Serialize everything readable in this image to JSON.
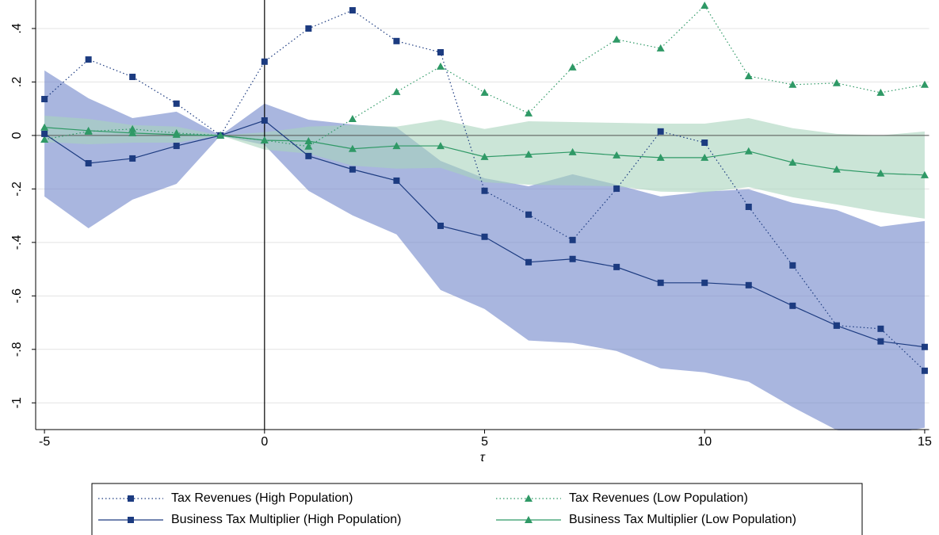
{
  "chart_data": {
    "type": "line",
    "x": [
      -5,
      -4,
      -3,
      -2,
      -1,
      0,
      1,
      2,
      3,
      4,
      5,
      6,
      7,
      8,
      9,
      10,
      11,
      12,
      13,
      14,
      15
    ],
    "xlim": [
      -5.2,
      15.1
    ],
    "xticks": [
      -5,
      0,
      5,
      10,
      15
    ],
    "ylim": [
      -1.1,
      0.49
    ],
    "yticks": [
      -1,
      {
        "value": -0.8,
        "label": "-.8"
      },
      {
        "value": -0.6,
        "label": "-.6"
      },
      {
        "value": -0.4,
        "label": "-.4"
      },
      {
        "value": -0.2,
        "label": "-.2"
      },
      0,
      {
        "value": 0.2,
        "label": ".2"
      },
      {
        "value": 0.4,
        "label": ".4"
      }
    ],
    "xlabel": "τ",
    "grid": true,
    "xline": 0,
    "bands": [
      {
        "color": "#6f86c9",
        "upper": [
          0.243,
          0.139,
          0.065,
          0.089,
          0,
          0.119,
          0.059,
          0.041,
          0.03,
          -0.095,
          -0.16,
          -0.19,
          -0.145,
          -0.184,
          -0.228,
          -0.21,
          -0.201,
          -0.252,
          -0.279,
          -0.341,
          -0.32
        ],
        "lower": [
          -0.228,
          -0.347,
          -0.24,
          -0.181,
          0,
          -0.036,
          -0.207,
          -0.299,
          -0.37,
          -0.578,
          -0.649,
          -0.767,
          -0.776,
          -0.806,
          -0.871,
          -0.886,
          -0.921,
          -1.016,
          -1.102,
          -1.123,
          -1.093
        ]
      },
      {
        "color": "#a9d3bd",
        "upper": [
          0.074,
          0.062,
          0.039,
          0.033,
          0,
          0.012,
          0.033,
          0.039,
          0.033,
          0.059,
          0.024,
          0.053,
          0.05,
          0.047,
          0.044,
          0.044,
          0.065,
          0.027,
          0.006,
          0,
          0.015
        ],
        "lower": [
          -0.024,
          -0.033,
          -0.027,
          -0.027,
          0,
          -0.053,
          -0.068,
          -0.113,
          -0.124,
          -0.121,
          -0.175,
          -0.184,
          -0.187,
          -0.19,
          -0.21,
          -0.213,
          -0.193,
          -0.231,
          -0.258,
          -0.287,
          -0.311
        ]
      }
    ],
    "series": [
      {
        "name": "Tax Revenues (High Population)",
        "color": "#1c3b80",
        "style": "dotted",
        "marker": "square",
        "values": [
          0.136,
          0.284,
          0.219,
          0.119,
          0,
          0.276,
          0.4,
          0.468,
          0.353,
          0.311,
          -0.207,
          -0.296,
          -0.391,
          -0.199,
          0.015,
          -0.027,
          -0.267,
          -0.486,
          -0.711,
          -0.723,
          -0.88
        ]
      },
      {
        "name": "Tax Revenues (Low Population)",
        "color": "#2f9966",
        "style": "dotted",
        "marker": "triangle",
        "values": [
          -0.015,
          0.015,
          0.024,
          0.009,
          0,
          -0.018,
          -0.041,
          0.062,
          0.163,
          0.258,
          0.16,
          0.083,
          0.255,
          0.359,
          0.326,
          0.486,
          0.222,
          0.19,
          0.196,
          0.16,
          0.19
        ]
      },
      {
        "name": "Business Tax Multiplier (High Population)",
        "color": "#1c3b80",
        "style": "solid",
        "marker": "square",
        "values": [
          0.006,
          -0.104,
          -0.086,
          -0.039,
          0,
          0.056,
          -0.077,
          -0.127,
          -0.169,
          -0.338,
          -0.379,
          -0.474,
          -0.462,
          -0.492,
          -0.551,
          -0.551,
          -0.56,
          -0.637,
          -0.711,
          -0.77,
          -0.791
        ]
      },
      {
        "name": "Business Tax Multiplier (Low Population)",
        "color": "#2f9966",
        "style": "solid",
        "marker": "triangle",
        "values": [
          0.03,
          0.018,
          0.009,
          0.003,
          0,
          -0.018,
          -0.021,
          -0.05,
          -0.039,
          -0.039,
          -0.08,
          -0.071,
          -0.062,
          -0.074,
          -0.083,
          -0.083,
          -0.059,
          -0.101,
          -0.127,
          -0.142,
          -0.148
        ]
      }
    ]
  }
}
